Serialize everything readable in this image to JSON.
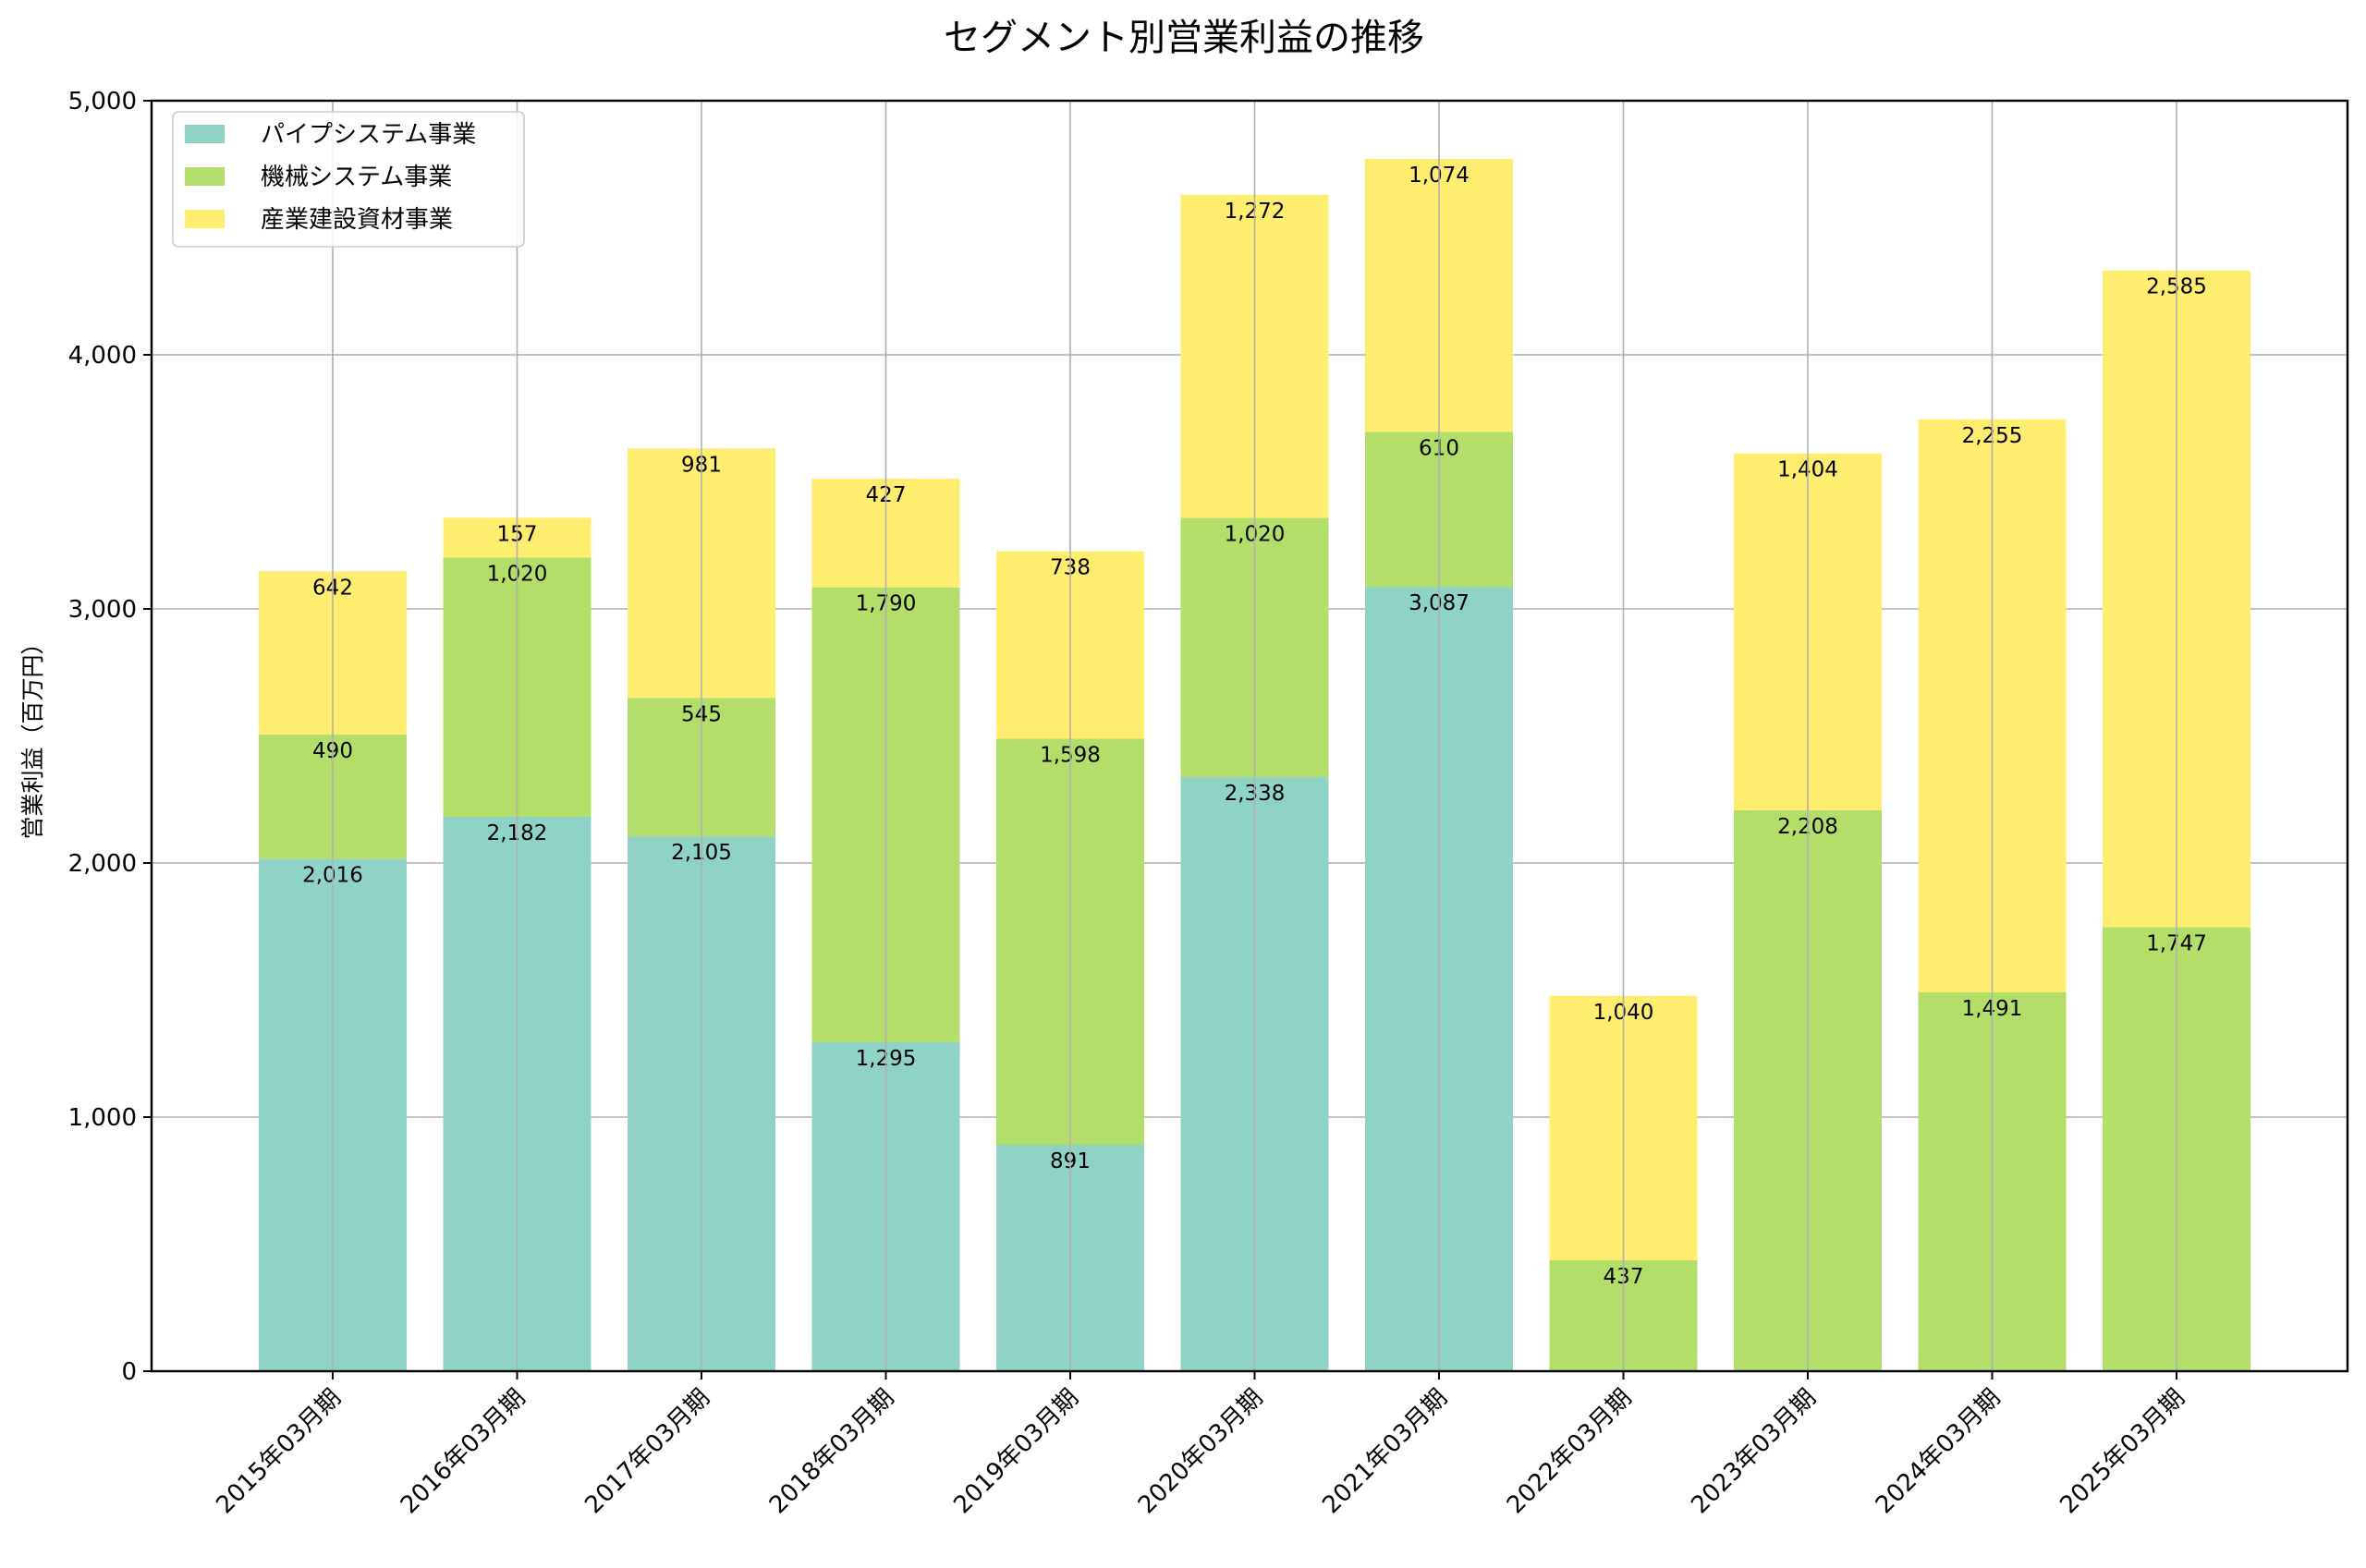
{
  "chart_data": {
    "type": "bar",
    "stacked": true,
    "title": "セグメント別営業利益の推移",
    "xlabel": "",
    "ylabel": "営業利益（百万円）",
    "ylim": [
      0,
      5000
    ],
    "yticks": [
      0,
      1000,
      2000,
      3000,
      4000,
      5000
    ],
    "ytick_labels": [
      "0",
      "1,000",
      "2,000",
      "3,000",
      "4,000",
      "5,000"
    ],
    "grid": true,
    "legend_position": "top-left",
    "categories": [
      "2015年03月期",
      "2016年03月期",
      "2017年03月期",
      "2018年03月期",
      "2019年03月期",
      "2020年03月期",
      "2021年03月期",
      "2022年03月期",
      "2023年03月期",
      "2024年03月期",
      "2025年03月期"
    ],
    "series": [
      {
        "name": "パイプシステム事業",
        "color": "#8fd3c7",
        "values": [
          2016,
          2182,
          2105,
          1295,
          891,
          2338,
          3087,
          null,
          null,
          null,
          null
        ],
        "labels": [
          "2,016",
          "2,182",
          "2,105",
          "1,295",
          "891",
          "2,338",
          "3,087",
          "",
          "",
          "",
          ""
        ]
      },
      {
        "name": "機械システム事業",
        "color": "#b3de69",
        "values": [
          490,
          1020,
          545,
          1790,
          1598,
          1020,
          610,
          437,
          2208,
          1491,
          1747
        ],
        "labels": [
          "490",
          "1,020",
          "545",
          "1,790",
          "1,598",
          "1,020",
          "610",
          "437",
          "2,208",
          "1,491",
          "1,747"
        ]
      },
      {
        "name": "産業建設資材事業",
        "color": "#ffed6f",
        "values": [
          642,
          157,
          981,
          427,
          738,
          1272,
          1074,
          1040,
          1404,
          2255,
          2585
        ],
        "labels": [
          "642",
          "157",
          "981",
          "427",
          "738",
          "1,272",
          "1,074",
          "1,040",
          "1,404",
          "2,255",
          "2,585"
        ]
      }
    ]
  }
}
